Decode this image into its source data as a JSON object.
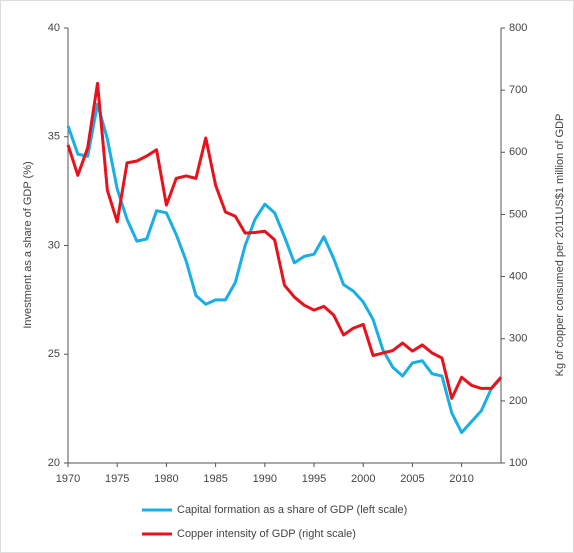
{
  "chart_data": {
    "type": "line",
    "x": [
      1970,
      1971,
      1972,
      1973,
      1974,
      1975,
      1976,
      1977,
      1978,
      1979,
      1980,
      1981,
      1982,
      1983,
      1984,
      1985,
      1986,
      1987,
      1988,
      1989,
      1990,
      1991,
      1992,
      1993,
      1994,
      1995,
      1996,
      1997,
      1998,
      1999,
      2000,
      2001,
      2002,
      2003,
      2004,
      2005,
      2006,
      2007,
      2008,
      2009,
      2010,
      2011,
      2012,
      2013,
      2014
    ],
    "series": [
      {
        "name": "Capital formation as a share of GDP (left scale)",
        "color": "#19aee6",
        "axis": "y",
        "values": [
          35.5,
          34.2,
          34.1,
          36.5,
          34.9,
          32.6,
          31.2,
          30.2,
          30.3,
          31.6,
          31.5,
          30.5,
          29.3,
          27.7,
          27.3,
          27.5,
          27.5,
          28.3,
          30.0,
          31.2,
          31.9,
          31.5,
          30.4,
          29.2,
          29.5,
          29.6,
          30.4,
          29.4,
          28.2,
          27.9,
          27.4,
          26.6,
          25.2,
          24.4,
          24.0,
          24.6,
          24.7,
          24.1,
          24.0,
          22.3,
          21.4,
          21.9,
          22.4,
          23.4,
          23.9
        ]
      },
      {
        "name": "Copper intensity of GDP (right scale)",
        "color": "#e8121c",
        "axis": "y2",
        "values": [
          612,
          563,
          607,
          711,
          539,
          488,
          583,
          586,
          594,
          604,
          515,
          558,
          562,
          558,
          623,
          547,
          504,
          497,
          470,
          471,
          473,
          459,
          386,
          367,
          354,
          346,
          352,
          338,
          306,
          317,
          323,
          273,
          277,
          281,
          293,
          280,
          290,
          277,
          269,
          204,
          238,
          225,
          220,
          220,
          238
        ]
      }
    ],
    "xlim": [
      1970,
      2014
    ],
    "xticks": [
      1970,
      1975,
      1980,
      1985,
      1990,
      1995,
      2000,
      2005,
      2010
    ],
    "ylim": [
      20,
      40
    ],
    "yticks": [
      20,
      25,
      30,
      35,
      40
    ],
    "y2lim": [
      100,
      800
    ],
    "y2ticks": [
      100,
      200,
      300,
      400,
      500,
      600,
      700,
      800
    ],
    "y_label": "Investment as a share of GDP (%)",
    "y2_label": "Kg of copper consumed per 2011US$1 million of GDP"
  }
}
